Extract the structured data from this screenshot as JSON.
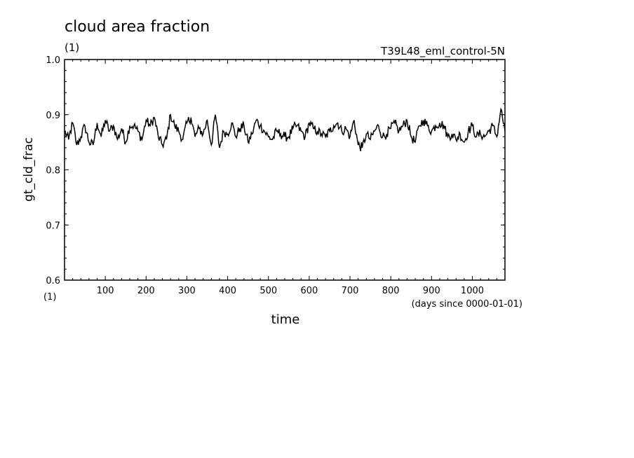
{
  "chart_data": {
    "type": "line",
    "title": "cloud area fraction",
    "title_units": "(1)",
    "experiment": "T39L48_eml_control-5N",
    "xlabel": "time",
    "x_units": "(days since 0000-01-01)",
    "ylabel": "gt_cld_frac",
    "y_units": "(1)",
    "xlim": [
      0,
      1080
    ],
    "ylim": [
      0.6,
      1.0
    ],
    "x_ticks": [
      100,
      200,
      300,
      400,
      500,
      600,
      700,
      800,
      900,
      1000
    ],
    "y_ticks": [
      "0.6",
      "0.7",
      "0.8",
      "0.9",
      "1.0"
    ],
    "grid": false,
    "legend": "none",
    "line_color": "#000000",
    "series": [
      {
        "x": [
          0,
          10,
          20,
          30,
          40,
          50,
          60,
          70,
          80,
          90,
          100,
          110,
          120,
          130,
          140,
          150,
          160,
          170,
          180,
          190,
          200,
          210,
          220,
          230,
          240,
          250,
          260,
          270,
          280,
          290,
          300,
          310,
          320,
          330,
          340,
          350,
          360,
          370,
          380,
          390,
          400,
          410,
          420,
          430,
          440,
          450,
          460,
          470,
          480,
          490,
          500,
          510,
          520,
          530,
          540,
          550,
          560,
          570,
          580,
          590,
          600,
          610,
          620,
          630,
          640,
          650,
          660,
          670,
          680,
          690,
          700,
          710,
          720,
          730,
          740,
          750,
          760,
          770,
          780,
          790,
          800,
          810,
          820,
          830,
          840,
          850,
          860,
          870,
          880,
          890,
          900,
          910,
          920,
          930,
          940,
          950,
          960,
          970,
          980,
          990,
          1000,
          1010,
          1020,
          1030,
          1040,
          1050,
          1060,
          1070,
          1080
        ],
        "values": [
          0.87,
          0.855,
          0.885,
          0.845,
          0.86,
          0.88,
          0.85,
          0.845,
          0.885,
          0.86,
          0.89,
          0.87,
          0.88,
          0.855,
          0.875,
          0.85,
          0.88,
          0.88,
          0.87,
          0.855,
          0.89,
          0.88,
          0.895,
          0.86,
          0.845,
          0.855,
          0.9,
          0.88,
          0.87,
          0.855,
          0.885,
          0.895,
          0.86,
          0.875,
          0.865,
          0.89,
          0.845,
          0.9,
          0.84,
          0.87,
          0.865,
          0.885,
          0.86,
          0.875,
          0.88,
          0.85,
          0.865,
          0.89,
          0.88,
          0.87,
          0.86,
          0.855,
          0.87,
          0.865,
          0.86,
          0.86,
          0.875,
          0.88,
          0.87,
          0.86,
          0.885,
          0.875,
          0.87,
          0.865,
          0.86,
          0.87,
          0.88,
          0.885,
          0.87,
          0.875,
          0.86,
          0.89,
          0.845,
          0.84,
          0.865,
          0.855,
          0.87,
          0.88,
          0.86,
          0.865,
          0.875,
          0.885,
          0.87,
          0.88,
          0.89,
          0.86,
          0.85,
          0.88,
          0.89,
          0.88,
          0.87,
          0.88,
          0.885,
          0.88,
          0.86,
          0.865,
          0.855,
          0.865,
          0.85,
          0.87,
          0.88,
          0.86,
          0.865,
          0.86,
          0.87,
          0.88,
          0.86,
          0.91,
          0.87
        ]
      }
    ]
  }
}
